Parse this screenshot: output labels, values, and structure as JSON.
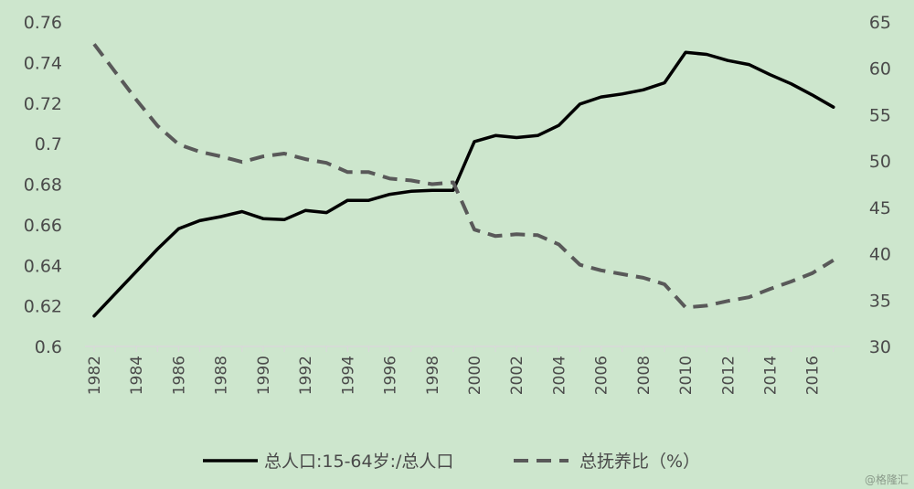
{
  "chart_data": {
    "type": "line",
    "x": [
      1982,
      1983,
      1984,
      1985,
      1986,
      1987,
      1988,
      1989,
      1990,
      1991,
      1992,
      1993,
      1994,
      1995,
      1996,
      1997,
      1998,
      1999,
      2000,
      2001,
      2002,
      2003,
      2004,
      2005,
      2006,
      2007,
      2008,
      2009,
      2010,
      2011,
      2012,
      2013,
      2014,
      2015,
      2016,
      2017
    ],
    "x_tick_labels": [
      "1982",
      "1984",
      "1986",
      "1988",
      "1990",
      "1992",
      "1994",
      "1996",
      "1998",
      "2000",
      "2002",
      "2004",
      "2006",
      "2008",
      "2010",
      "2012",
      "2014",
      "2016"
    ],
    "series": [
      {
        "name": "总人口:15-64岁:/总人口",
        "axis": "left",
        "style": "solid",
        "color": "#000000",
        "values": [
          0.615,
          0.626,
          0.637,
          0.648,
          0.658,
          0.662,
          0.664,
          0.6665,
          0.663,
          0.6625,
          0.667,
          0.666,
          0.672,
          0.672,
          0.675,
          0.6765,
          0.677,
          0.677,
          0.701,
          0.704,
          0.703,
          0.704,
          0.709,
          0.7195,
          0.723,
          0.7245,
          0.7265,
          0.73,
          0.745,
          0.744,
          0.741,
          0.739,
          0.734,
          0.7295,
          0.724,
          0.718
        ]
      },
      {
        "name": "总抚养比（%）",
        "axis": "right",
        "style": "dashed",
        "color": "#595959",
        "values": [
          62.6,
          59.6,
          56.6,
          53.8,
          51.8,
          51.0,
          50.5,
          49.9,
          50.5,
          50.8,
          50.2,
          49.8,
          48.8,
          48.8,
          48.1,
          47.9,
          47.5,
          47.7,
          42.6,
          41.9,
          42.1,
          42.0,
          41.0,
          38.8,
          38.2,
          37.8,
          37.4,
          36.7,
          34.2,
          34.4,
          34.9,
          35.3,
          36.2,
          37.0,
          37.9,
          39.3
        ]
      }
    ],
    "y_left": {
      "ylim": [
        0.6,
        0.76
      ],
      "ticks": [
        "0.6",
        "0.62",
        "0.64",
        "0.66",
        "0.68",
        "0.7",
        "0.72",
        "0.74",
        "0.76"
      ]
    },
    "y_right": {
      "ylim": [
        30,
        65
      ],
      "ticks": [
        "30",
        "35",
        "40",
        "45",
        "50",
        "55",
        "60",
        "65"
      ]
    },
    "legend": {
      "placement": "bottom",
      "entries": [
        "总人口:15-64岁:/总人口",
        "总抚养比（%）"
      ]
    },
    "grid": false,
    "watermark": "@格隆汇"
  }
}
